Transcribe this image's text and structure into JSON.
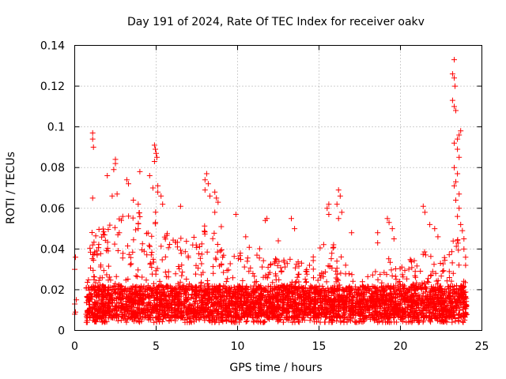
{
  "chart_data": {
    "type": "scatter",
    "title": "Day 191 of 2024, Rate Of TEC Index for receiver oakv",
    "xlabel": "GPS time / hours",
    "ylabel": "ROTI / TECUs",
    "xlim": [
      0,
      25
    ],
    "ylim": [
      0,
      0.14
    ],
    "grid": true,
    "marker": "plus",
    "series_color": "#ff0000",
    "x_ticks": [
      0,
      5,
      10,
      15,
      20,
      25
    ],
    "x_tick_labels": [
      "0",
      "5",
      "10",
      "15",
      "20",
      "25"
    ],
    "y_ticks": [
      0,
      0.02,
      0.04,
      0.06,
      0.08,
      0.1,
      0.12,
      0.14
    ],
    "y_tick_labels": [
      "0",
      "0.02",
      "0.04",
      "0.06",
      "0.08",
      "0.1",
      "0.12",
      "0.14"
    ],
    "series": [
      {
        "name": "ROTI",
        "points": [
          [
            0.0,
            0.008
          ],
          [
            0.0,
            0.013
          ],
          [
            0.0,
            0.03
          ],
          [
            0.05,
            0.036
          ],
          [
            0.05,
            0.009
          ],
          [
            0.1,
            0.015
          ],
          [
            1.1,
            0.097
          ],
          [
            1.1,
            0.094
          ],
          [
            1.15,
            0.09
          ],
          [
            1.1,
            0.065
          ],
          [
            2.5,
            0.084
          ],
          [
            2.5,
            0.082
          ],
          [
            2.4,
            0.079
          ],
          [
            2.0,
            0.076
          ],
          [
            2.6,
            0.067
          ],
          [
            2.3,
            0.066
          ],
          [
            3.2,
            0.074
          ],
          [
            3.3,
            0.072
          ],
          [
            3.6,
            0.064
          ],
          [
            3.9,
            0.062
          ],
          [
            4.0,
            0.078
          ],
          [
            3.9,
            0.05
          ],
          [
            4.9,
            0.091
          ],
          [
            4.95,
            0.089
          ],
          [
            5.0,
            0.087
          ],
          [
            5.05,
            0.085
          ],
          [
            4.9,
            0.083
          ],
          [
            4.6,
            0.076
          ],
          [
            4.8,
            0.07
          ],
          [
            5.1,
            0.071
          ],
          [
            5.1,
            0.068
          ],
          [
            5.3,
            0.066
          ],
          [
            5.4,
            0.062
          ],
          [
            6.5,
            0.061
          ],
          [
            8.1,
            0.077
          ],
          [
            8.0,
            0.074
          ],
          [
            8.2,
            0.072
          ],
          [
            8.0,
            0.069
          ],
          [
            8.3,
            0.066
          ],
          [
            8.6,
            0.068
          ],
          [
            8.7,
            0.065
          ],
          [
            8.8,
            0.063
          ],
          [
            8.6,
            0.058
          ],
          [
            9.9,
            0.057
          ],
          [
            9.0,
            0.051
          ],
          [
            10.5,
            0.046
          ],
          [
            11.7,
            0.054
          ],
          [
            11.8,
            0.055
          ],
          [
            13.3,
            0.055
          ],
          [
            13.5,
            0.05
          ],
          [
            12.5,
            0.044
          ],
          [
            15.6,
            0.062
          ],
          [
            15.5,
            0.06
          ],
          [
            15.6,
            0.057
          ],
          [
            16.2,
            0.069
          ],
          [
            16.3,
            0.066
          ],
          [
            16.1,
            0.062
          ],
          [
            16.4,
            0.058
          ],
          [
            16.2,
            0.055
          ],
          [
            17.0,
            0.048
          ],
          [
            18.6,
            0.043
          ],
          [
            19.2,
            0.055
          ],
          [
            19.3,
            0.053
          ],
          [
            19.5,
            0.05
          ],
          [
            18.6,
            0.048
          ],
          [
            19.6,
            0.045
          ],
          [
            21.4,
            0.061
          ],
          [
            21.5,
            0.058
          ],
          [
            21.8,
            0.052
          ],
          [
            22.1,
            0.05
          ],
          [
            22.3,
            0.046
          ],
          [
            23.3,
            0.133
          ],
          [
            23.2,
            0.126
          ],
          [
            23.3,
            0.124
          ],
          [
            23.35,
            0.12
          ],
          [
            23.2,
            0.113
          ],
          [
            23.3,
            0.11
          ],
          [
            23.4,
            0.108
          ],
          [
            23.7,
            0.098
          ],
          [
            23.6,
            0.096
          ],
          [
            23.5,
            0.094
          ],
          [
            23.3,
            0.092
          ],
          [
            23.5,
            0.089
          ],
          [
            23.6,
            0.085
          ],
          [
            23.3,
            0.08
          ],
          [
            23.5,
            0.077
          ],
          [
            23.4,
            0.073
          ],
          [
            23.3,
            0.071
          ],
          [
            23.6,
            0.067
          ],
          [
            23.4,
            0.064
          ],
          [
            23.6,
            0.06
          ],
          [
            23.5,
            0.056
          ],
          [
            23.7,
            0.052
          ],
          [
            23.8,
            0.049
          ],
          [
            23.9,
            0.045
          ],
          [
            23.9,
            0.04
          ],
          [
            24.0,
            0.036
          ],
          [
            24.0,
            0.032
          ]
        ]
      }
    ],
    "dense_band": [
      [
        0.7,
        0.045
      ],
      [
        1.0,
        0.052
      ],
      [
        1.5,
        0.05
      ],
      [
        2.0,
        0.053
      ],
      [
        2.5,
        0.055
      ],
      [
        3.0,
        0.057
      ],
      [
        3.5,
        0.058
      ],
      [
        4.0,
        0.06
      ],
      [
        4.5,
        0.062
      ],
      [
        5.0,
        0.06
      ],
      [
        5.5,
        0.052
      ],
      [
        6.0,
        0.049
      ],
      [
        6.5,
        0.046
      ],
      [
        7.0,
        0.05
      ],
      [
        7.5,
        0.048
      ],
      [
        8.0,
        0.052
      ],
      [
        8.5,
        0.05
      ],
      [
        9.0,
        0.042
      ],
      [
        9.5,
        0.038
      ],
      [
        10.0,
        0.036
      ],
      [
        10.5,
        0.042
      ],
      [
        11.0,
        0.04
      ],
      [
        11.5,
        0.042
      ],
      [
        12.0,
        0.038
      ],
      [
        12.5,
        0.036
      ],
      [
        13.0,
        0.04
      ],
      [
        13.5,
        0.038
      ],
      [
        14.0,
        0.035
      ],
      [
        14.5,
        0.04
      ],
      [
        15.0,
        0.042
      ],
      [
        15.5,
        0.045
      ],
      [
        16.0,
        0.043
      ],
      [
        16.5,
        0.036
      ],
      [
        17.0,
        0.028
      ],
      [
        17.5,
        0.022
      ],
      [
        18.0,
        0.03
      ],
      [
        18.5,
        0.033
      ],
      [
        19.0,
        0.038
      ],
      [
        19.5,
        0.034
      ],
      [
        20.0,
        0.032
      ],
      [
        20.5,
        0.036
      ],
      [
        21.0,
        0.034
      ],
      [
        21.5,
        0.04
      ],
      [
        22.0,
        0.037
      ],
      [
        22.5,
        0.034
      ],
      [
        23.0,
        0.042
      ],
      [
        23.5,
        0.05
      ],
      [
        24.0,
        0.04
      ]
    ]
  }
}
